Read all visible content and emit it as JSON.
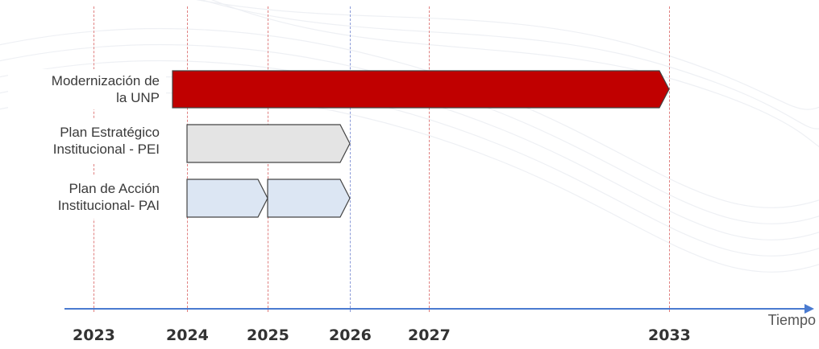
{
  "rows": [
    {
      "label": "Modernización de\nla UNP",
      "color": "#c00000",
      "segments": [
        [
          2023.85,
          2033
        ]
      ]
    },
    {
      "label": "Plan Estratégico\nInstitucional - PEI",
      "color": "#e4e4e4",
      "segments": [
        [
          2024,
          2026
        ]
      ]
    },
    {
      "label": "Plan de Acción\nInstitucional- PAI",
      "color": "#dce6f3",
      "segments": [
        [
          2024,
          2025
        ],
        [
          2025,
          2026
        ]
      ]
    }
  ],
  "years": [
    {
      "label": "2023",
      "value": 2023,
      "line_color": "#e08080"
    },
    {
      "label": "2024",
      "value": 2024,
      "line_color": "#e08080"
    },
    {
      "label": "2025",
      "value": 2025,
      "line_color": "#e08080"
    },
    {
      "label": "2026",
      "value": 2026,
      "line_color": "#8a9ad8"
    },
    {
      "label": "2027",
      "value": 2027,
      "line_color": "#e08080"
    },
    {
      "label": "2033",
      "value": 2033,
      "line_color": "#e08080"
    }
  ],
  "axis": {
    "label": "Tiempo",
    "color": "#4a7bd0"
  }
}
